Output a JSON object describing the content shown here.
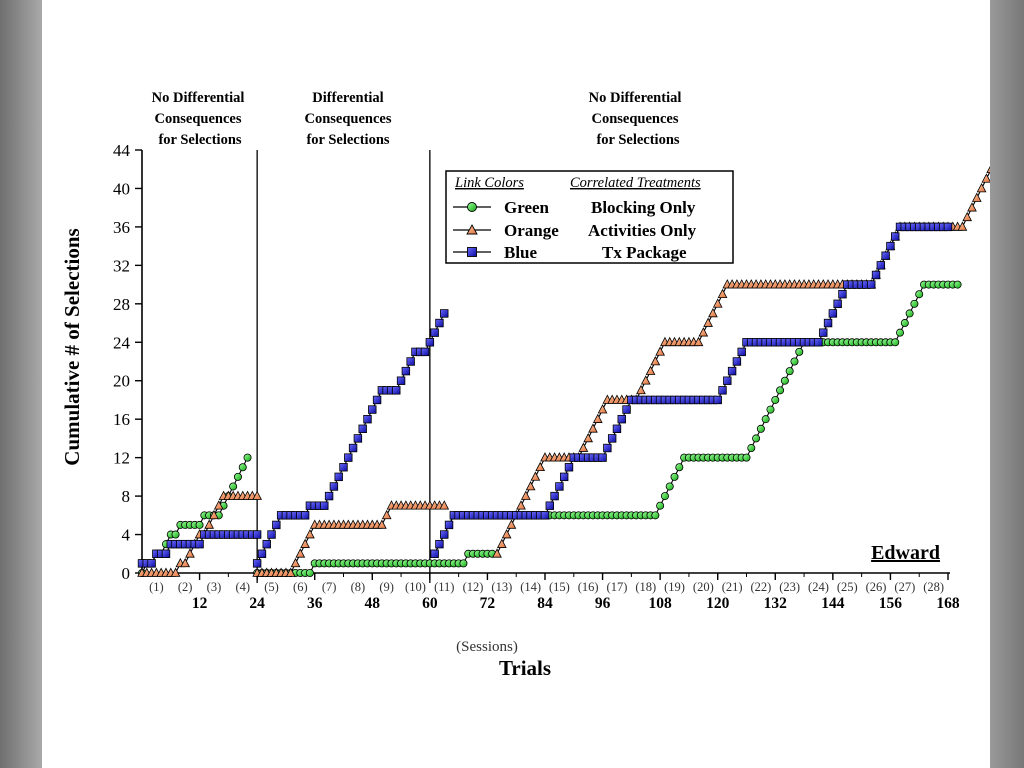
{
  "chart_data": {
    "type": "line",
    "ylabel": "Cumulative # of Selections",
    "xlabel": "Trials",
    "xlabel_sub": "(Sessions)",
    "participant": "Edward",
    "xlim": [
      0,
      168
    ],
    "ylim": [
      0,
      44
    ],
    "yticks": [
      0,
      4,
      8,
      12,
      16,
      20,
      24,
      28,
      32,
      36,
      40,
      44
    ],
    "xticks": [
      12,
      24,
      36,
      48,
      60,
      72,
      84,
      96,
      108,
      120,
      132,
      144,
      156,
      168
    ],
    "sessions": [
      "(1)",
      "(2)",
      "(3)",
      "(4)",
      "(5)",
      "(6)",
      "(7)",
      "(8)",
      "(9)",
      "(10)",
      "(11)",
      "(12)",
      "(13)",
      "(14)",
      "(15)",
      "(16)",
      "(17)",
      "(18)",
      "(19)",
      "(20)",
      "(21)",
      "(22)",
      "(23)",
      "(24)",
      "(25)",
      "(26)",
      "(27)",
      "(28)"
    ],
    "phase_lines": [
      24,
      60
    ],
    "phases": [
      {
        "lines": [
          "No Differential",
          "Consequences",
          "for Selections"
        ]
      },
      {
        "lines": [
          "Differential",
          "Consequences",
          "for Selections"
        ]
      },
      {
        "lines": [
          "No Differential",
          "Consequences",
          "for Selections"
        ]
      }
    ],
    "legend": {
      "header_color": "Link Colors",
      "header_treatment": "Correlated Treatments",
      "entries": [
        {
          "color": "Green",
          "treatment": "Blocking Only"
        },
        {
          "color": "Orange",
          "treatment": "Activities Only"
        },
        {
          "color": "Blue",
          "treatment": "Tx Package"
        }
      ]
    },
    "series": [
      {
        "name": "Green",
        "marker": "circle",
        "color": "#22cc22",
        "segments": [
          {
            "start": 0,
            "values": [
              0,
              1,
              1,
              2,
              2,
              3,
              4,
              4,
              5,
              5,
              5,
              5,
              5,
              6,
              6,
              6,
              6,
              7,
              8,
              9,
              10,
              11,
              12
            ]
          },
          {
            "start": 24,
            "values": [
              0,
              0,
              0,
              0,
              0,
              0,
              0,
              0,
              0,
              0,
              0,
              0,
              1,
              1,
              1,
              1,
              1,
              1,
              1,
              1,
              1,
              1,
              1,
              1,
              1,
              1,
              1,
              1,
              1,
              1,
              1,
              1,
              1,
              1,
              1,
              1,
              1,
              1,
              1,
              1,
              1,
              1,
              1,
              1,
              2,
              2,
              2,
              2,
              2,
              2
            ]
          },
          {
            "start": 61,
            "values": [
              2,
              3,
              4,
              5,
              6,
              6,
              6,
              6,
              6,
              6,
              6,
              6,
              6,
              6,
              6,
              6,
              6,
              6,
              6,
              6,
              6,
              6,
              6,
              6,
              6,
              6,
              6,
              6,
              6,
              6,
              6,
              6,
              6,
              6,
              6,
              6,
              6,
              6,
              6,
              6,
              6,
              6,
              6,
              6,
              6,
              6,
              6,
              7,
              8,
              9,
              10,
              11,
              12,
              12,
              12,
              12,
              12,
              12,
              12,
              12,
              12,
              12,
              12,
              12,
              12,
              12,
              13,
              14,
              15,
              16,
              17,
              18,
              19,
              20,
              21,
              22,
              23,
              24,
              24,
              24,
              24,
              24,
              24,
              24,
              24,
              24,
              24,
              24,
              24,
              24,
              24,
              24,
              24,
              24,
              24,
              24,
              24,
              25,
              26,
              27,
              28,
              29,
              30,
              30,
              30,
              30,
              30,
              30,
              30,
              30
            ]
          }
        ]
      },
      {
        "name": "Orange",
        "marker": "triangle",
        "color": "#f08a5a",
        "segments": [
          {
            "start": 0,
            "values": [
              0,
              0,
              0,
              0,
              0,
              0,
              0,
              0,
              1,
              1,
              2,
              3,
              4,
              4,
              5,
              6,
              7,
              8,
              8,
              8,
              8,
              8,
              8,
              8,
              8
            ]
          },
          {
            "start": 24,
            "values": [
              0,
              0,
              0,
              0,
              0,
              0,
              0,
              0,
              1,
              2,
              3,
              4,
              5,
              5,
              5,
              5,
              5,
              5,
              5,
              5,
              5,
              5,
              5,
              5,
              5,
              5,
              5,
              6,
              7,
              7,
              7,
              7,
              7,
              7,
              7,
              7,
              7,
              7,
              7,
              7
            ]
          },
          {
            "start": 74,
            "values": [
              2,
              3,
              4,
              5,
              6,
              7,
              8,
              9,
              10,
              11,
              12,
              12,
              12,
              12,
              12,
              12,
              12,
              12,
              13,
              14,
              15,
              16,
              17,
              18,
              18,
              18,
              18,
              18,
              18,
              18,
              19,
              20,
              21,
              22,
              23,
              24,
              24,
              24,
              24,
              24,
              24,
              24,
              24,
              25,
              26,
              27,
              28,
              29,
              30,
              30,
              30,
              30,
              30,
              30,
              30,
              30,
              30,
              30,
              30,
              30,
              30,
              30,
              30,
              30,
              30,
              30,
              30,
              30,
              30,
              30,
              30,
              30,
              30,
              30,
              30,
              30,
              30,
              30,
              30,
              31,
              32,
              33,
              34,
              35,
              36,
              36,
              36,
              36,
              36,
              36,
              36,
              36,
              36,
              36,
              36,
              36,
              36,
              36,
              37,
              38,
              39,
              40,
              41,
              42
            ]
          }
        ]
      },
      {
        "name": "Blue",
        "marker": "square",
        "color": "#1a1acc",
        "segments": [
          {
            "start": 0,
            "values": [
              1,
              1,
              1,
              2,
              2,
              2,
              3,
              3,
              3,
              3,
              3,
              3,
              3,
              4,
              4,
              4,
              4,
              4,
              4,
              4,
              4,
              4,
              4,
              4,
              4
            ]
          },
          {
            "start": 24,
            "values": [
              1,
              2,
              3,
              4,
              5,
              6,
              6,
              6,
              6,
              6,
              6,
              7,
              7,
              7,
              7,
              8,
              9,
              10,
              11,
              12,
              13,
              14,
              15,
              16,
              17,
              18,
              19,
              19,
              19,
              19,
              20,
              21,
              22,
              23,
              23,
              23,
              24,
              25,
              26,
              27
            ]
          },
          {
            "start": 61,
            "values": [
              2,
              3,
              4,
              5,
              6,
              6,
              6,
              6,
              6,
              6,
              6,
              6,
              6,
              6,
              6,
              6,
              6,
              6,
              6,
              6,
              6,
              6,
              6,
              6,
              7,
              8,
              9,
              10,
              11,
              12,
              12,
              12,
              12,
              12,
              12,
              12,
              13,
              14,
              15,
              16,
              17,
              18,
              18,
              18,
              18,
              18,
              18,
              18,
              18,
              18,
              18,
              18,
              18,
              18,
              18,
              18,
              18,
              18,
              18,
              18,
              19,
              20,
              21,
              22,
              23,
              24,
              24,
              24,
              24,
              24,
              24,
              24,
              24,
              24,
              24,
              24,
              24,
              24,
              24,
              24,
              24,
              25,
              26,
              27,
              28,
              29,
              30,
              30,
              30,
              30,
              30,
              30,
              31,
              32,
              33,
              34,
              35,
              36,
              36,
              36,
              36,
              36,
              36,
              36,
              36,
              36,
              36,
              36
            ]
          }
        ]
      }
    ]
  }
}
